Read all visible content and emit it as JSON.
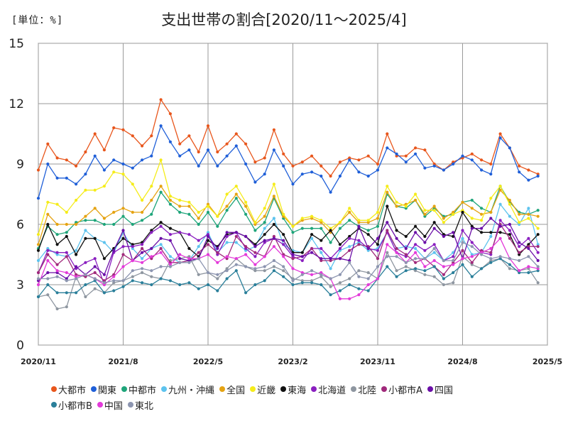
{
  "chart_data": {
    "type": "line",
    "title": "支出世帯の割合[2020/11～2025/4]",
    "unit_label": "[単位：%]",
    "ylim": [
      0,
      15
    ],
    "yticks": [
      0,
      3,
      6,
      9,
      12,
      15
    ],
    "x_start": "2020/11",
    "x_months": 54,
    "xticks": [
      {
        "label": "2020/11",
        "index": 0
      },
      {
        "label": "2021/8",
        "index": 9
      },
      {
        "label": "2022/5",
        "index": 18
      },
      {
        "label": "2023/2",
        "index": 27
      },
      {
        "label": "2023/11",
        "index": 36
      },
      {
        "label": "2024/8",
        "index": 45
      },
      {
        "label": "2025/5",
        "index": 54
      }
    ],
    "grid": true,
    "legend_position": "bottom",
    "series": [
      {
        "name": "大都市",
        "color": "#E8561C",
        "values": [
          8.7,
          10.0,
          9.3,
          9.2,
          8.9,
          9.6,
          10.5,
          9.7,
          10.8,
          10.7,
          10.4,
          9.9,
          10.4,
          12.2,
          11.5,
          10.0,
          10.4,
          9.6,
          10.9,
          9.6,
          10.0,
          10.5,
          10.0,
          9.1,
          9.3,
          10.7,
          9.5,
          8.9,
          9.1,
          9.4,
          8.9,
          8.4,
          9.1,
          9.3,
          9.2,
          9.4,
          9.0,
          10.5,
          9.4,
          9.4,
          9.8,
          9.7,
          9.0,
          8.7,
          9.1,
          9.3,
          9.5,
          9.2,
          9.0,
          10.5,
          9.8,
          8.9,
          8.7,
          8.5
        ]
      },
      {
        "name": "関東",
        "color": "#1F5FD8",
        "values": [
          7.3,
          9.0,
          8.3,
          8.3,
          8.0,
          8.5,
          9.4,
          8.7,
          9.2,
          9.0,
          8.8,
          9.2,
          9.4,
          10.9,
          10.1,
          9.4,
          9.7,
          8.9,
          9.7,
          8.9,
          9.4,
          9.9,
          9.0,
          8.1,
          8.5,
          9.7,
          8.9,
          8.0,
          8.5,
          8.6,
          8.4,
          7.6,
          8.4,
          9.2,
          8.6,
          8.4,
          8.7,
          9.8,
          9.5,
          9.1,
          9.5,
          8.8,
          8.9,
          8.7,
          9.0,
          9.4,
          9.2,
          8.7,
          8.5,
          10.3,
          9.8,
          8.6,
          8.2,
          8.4
        ]
      },
      {
        "name": "中都市",
        "color": "#1EA57A",
        "values": [
          4.8,
          5.9,
          5.5,
          5.6,
          6.1,
          6.2,
          6.2,
          6.0,
          6.0,
          6.4,
          6.0,
          6.2,
          6.5,
          7.6,
          7.0,
          6.6,
          6.5,
          6.0,
          6.6,
          5.9,
          6.7,
          7.3,
          6.5,
          5.7,
          6.1,
          7.3,
          6.3,
          5.6,
          5.8,
          5.8,
          5.8,
          5.1,
          5.8,
          6.2,
          5.9,
          5.7,
          5.9,
          7.5,
          6.9,
          6.8,
          7.2,
          6.4,
          6.8,
          6.4,
          6.5,
          7.1,
          7.2,
          6.8,
          6.6,
          7.9,
          7.1,
          6.6,
          6.5,
          6.7
        ]
      },
      {
        "name": "九州・沖縄",
        "color": "#5DC3EE",
        "values": [
          4.2,
          4.8,
          4.5,
          4.4,
          4.7,
          5.7,
          5.3,
          5.1,
          4.6,
          5.6,
          4.8,
          4.3,
          4.8,
          5.0,
          4.4,
          4.1,
          4.2,
          4.9,
          5.6,
          4.6,
          5.1,
          5.1,
          4.7,
          4.9,
          5.8,
          6.3,
          5.0,
          4.7,
          4.6,
          5.3,
          4.6,
          3.8,
          4.7,
          4.9,
          5.1,
          4.7,
          4.8,
          5.6,
          4.8,
          4.9,
          4.8,
          4.3,
          4.6,
          4.2,
          4.6,
          5.3,
          4.5,
          4.6,
          5.4,
          7.0,
          6.4,
          6.0,
          6.8,
          5.0
        ]
      },
      {
        "name": "全国",
        "color": "#E5A312",
        "values": [
          5.0,
          6.5,
          6.0,
          6.0,
          6.0,
          6.4,
          6.8,
          6.3,
          6.6,
          6.8,
          6.6,
          6.6,
          7.2,
          7.9,
          7.2,
          6.9,
          6.9,
          6.3,
          7.0,
          6.4,
          6.9,
          7.5,
          6.9,
          6.0,
          6.4,
          7.4,
          6.4,
          5.9,
          6.2,
          6.3,
          6.1,
          5.6,
          6.1,
          6.6,
          6.1,
          6.1,
          6.3,
          7.6,
          6.9,
          7.0,
          7.2,
          6.5,
          6.9,
          6.3,
          6.6,
          7.1,
          6.8,
          6.5,
          6.6,
          7.7,
          7.2,
          6.5,
          6.5,
          6.4
        ]
      },
      {
        "name": "近畿",
        "color": "#F5EC1A",
        "values": [
          5.5,
          7.1,
          7.0,
          6.6,
          7.2,
          7.7,
          7.7,
          7.9,
          8.6,
          8.5,
          8.0,
          7.2,
          7.9,
          9.2,
          7.4,
          7.2,
          7.1,
          6.6,
          6.9,
          6.4,
          7.5,
          7.9,
          7.1,
          6.1,
          6.8,
          8.0,
          6.5,
          5.9,
          6.3,
          6.4,
          6.2,
          5.8,
          6.1,
          6.8,
          6.2,
          6.2,
          6.6,
          7.9,
          7.1,
          6.9,
          7.5,
          6.7,
          6.7,
          6.1,
          6.5,
          6.7,
          6.3,
          6.2,
          7.3,
          7.9,
          7.0,
          6.1,
          6.3,
          5.8
        ]
      },
      {
        "name": "東海",
        "color": "#111111",
        "values": [
          4.7,
          6.0,
          5.0,
          5.4,
          4.5,
          5.3,
          5.3,
          4.3,
          4.8,
          5.3,
          5.0,
          5.1,
          5.7,
          6.1,
          5.8,
          5.6,
          4.8,
          4.4,
          5.2,
          4.9,
          5.5,
          5.6,
          5.4,
          5.0,
          5.5,
          6.0,
          5.5,
          4.6,
          4.6,
          5.5,
          5.2,
          5.7,
          5.0,
          5.4,
          5.8,
          5.5,
          5.0,
          6.9,
          5.7,
          5.4,
          5.9,
          5.4,
          6.1,
          5.5,
          5.4,
          6.6,
          5.9,
          5.6,
          5.6,
          5.6,
          5.5,
          4.5,
          5.0,
          5.5
        ]
      },
      {
        "name": "北海道",
        "color": "#8A1FC0",
        "values": [
          3.6,
          4.7,
          4.6,
          4.6,
          3.8,
          4.1,
          4.3,
          3.0,
          4.6,
          4.9,
          4.9,
          5.0,
          5.6,
          5.9,
          5.5,
          5.6,
          5.5,
          5.2,
          5.5,
          4.5,
          5.4,
          5.6,
          4.8,
          4.4,
          5.1,
          5.3,
          5.0,
          4.4,
          4.2,
          4.8,
          4.8,
          4.3,
          4.8,
          5.3,
          5.2,
          4.8,
          4.7,
          5.6,
          4.6,
          4.4,
          5.0,
          4.7,
          5.0,
          4.2,
          4.4,
          5.7,
          5.1,
          4.6,
          4.5,
          6.2,
          5.7,
          4.9,
          5.3,
          4.6
        ]
      },
      {
        "name": "北陸",
        "color": "#8E96A0",
        "values": [
          2.4,
          2.5,
          1.8,
          1.9,
          3.4,
          2.4,
          2.8,
          2.6,
          3.1,
          3.2,
          3.4,
          3.6,
          3.4,
          3.3,
          4.2,
          4.3,
          4.4,
          3.5,
          3.6,
          3.3,
          3.8,
          4.3,
          3.9,
          3.7,
          3.7,
          3.9,
          3.7,
          3.3,
          3.2,
          3.2,
          3.4,
          2.9,
          3.1,
          3.3,
          3.7,
          3.6,
          3.3,
          4.6,
          3.7,
          3.9,
          3.7,
          3.5,
          3.4,
          3.0,
          3.1,
          4.4,
          4.0,
          3.8,
          4.2,
          4.3,
          3.8,
          3.7,
          3.8,
          3.1
        ]
      },
      {
        "name": "小都市A",
        "color": "#A0297B",
        "values": [
          3.6,
          4.5,
          4.0,
          4.4,
          3.5,
          3.4,
          3.6,
          3.2,
          3.5,
          4.5,
          4.2,
          4.8,
          4.3,
          4.8,
          4.1,
          4.1,
          4.2,
          4.6,
          5.0,
          4.6,
          4.3,
          5.4,
          4.9,
          4.6,
          4.4,
          5.4,
          4.5,
          4.3,
          4.4,
          4.8,
          4.2,
          4.2,
          4.3,
          4.7,
          5.0,
          4.9,
          4.3,
          5.7,
          4.8,
          4.5,
          4.1,
          4.3,
          3.9,
          3.5,
          4.1,
          4.7,
          4.1,
          4.7,
          4.6,
          6.0,
          5.3,
          4.6,
          4.9,
          4.9
        ]
      },
      {
        "name": "四国",
        "color": "#6B0FA8",
        "values": [
          3.2,
          3.6,
          3.6,
          3.3,
          3.9,
          3.5,
          3.9,
          3.5,
          4.7,
          5.7,
          4.2,
          4.6,
          4.8,
          5.3,
          5.2,
          4.3,
          4.2,
          4.3,
          5.4,
          4.8,
          5.6,
          5.6,
          5.4,
          4.9,
          5.2,
          5.3,
          5.2,
          4.5,
          4.4,
          4.6,
          4.3,
          4.3,
          4.3,
          4.2,
          5.9,
          4.8,
          5.3,
          6.1,
          5.3,
          4.8,
          5.6,
          5.1,
          5.8,
          5.4,
          5.6,
          4.3,
          5.8,
          5.8,
          6.3,
          5.9,
          6.0,
          5.1,
          4.8,
          4.2
        ]
      },
      {
        "name": "小都市B",
        "color": "#2A7F9A",
        "values": [
          2.4,
          3.0,
          2.6,
          2.6,
          2.6,
          3.0,
          3.2,
          2.6,
          2.7,
          2.9,
          3.2,
          3.1,
          3.0,
          3.3,
          3.2,
          3.0,
          3.1,
          2.8,
          3.0,
          2.7,
          3.3,
          3.7,
          2.6,
          3.0,
          3.2,
          3.7,
          3.4,
          3.0,
          3.1,
          3.1,
          3.0,
          2.5,
          2.7,
          3.0,
          2.8,
          2.7,
          3.3,
          3.9,
          3.4,
          3.7,
          3.8,
          3.7,
          3.9,
          3.3,
          3.6,
          4.0,
          3.4,
          3.8,
          4.1,
          4.3,
          4.0,
          3.6,
          3.6,
          3.7
        ]
      },
      {
        "name": "中国",
        "color": "#E33AD9",
        "values": [
          3.0,
          4.2,
          3.7,
          3.6,
          3.4,
          3.5,
          3.3,
          3.0,
          3.4,
          3.9,
          4.2,
          4.1,
          4.4,
          4.6,
          4.0,
          4.5,
          4.3,
          4.3,
          4.5,
          4.1,
          4.4,
          4.3,
          4.5,
          4.0,
          4.4,
          4.9,
          4.4,
          3.8,
          3.6,
          3.5,
          3.6,
          3.3,
          2.3,
          2.3,
          2.5,
          3.0,
          3.3,
          5.0,
          4.6,
          4.1,
          4.6,
          3.9,
          4.2,
          3.9,
          4.0,
          4.3,
          4.4,
          4.6,
          4.8,
          5.3,
          4.3,
          3.7,
          3.9,
          3.8
        ]
      },
      {
        "name": "東北",
        "color": "#8C95B0",
        "values": [
          3.3,
          3.3,
          3.4,
          3.2,
          3.3,
          3.5,
          3.3,
          3.1,
          3.2,
          3.2,
          3.7,
          3.8,
          3.7,
          3.9,
          3.9,
          4.1,
          4.1,
          4.3,
          3.6,
          3.5,
          3.7,
          4.0,
          3.9,
          3.8,
          3.9,
          4.2,
          3.9,
          3.2,
          3.5,
          3.7,
          3.5,
          3.3,
          3.5,
          4.1,
          3.4,
          3.3,
          3.9,
          4.4,
          4.4,
          4.1,
          4.3,
          4.3,
          4.8,
          4.2,
          4.2,
          5.1,
          4.9,
          4.5,
          4.3,
          4.4,
          4.3,
          4.2,
          4.4,
          3.9
        ]
      }
    ]
  }
}
